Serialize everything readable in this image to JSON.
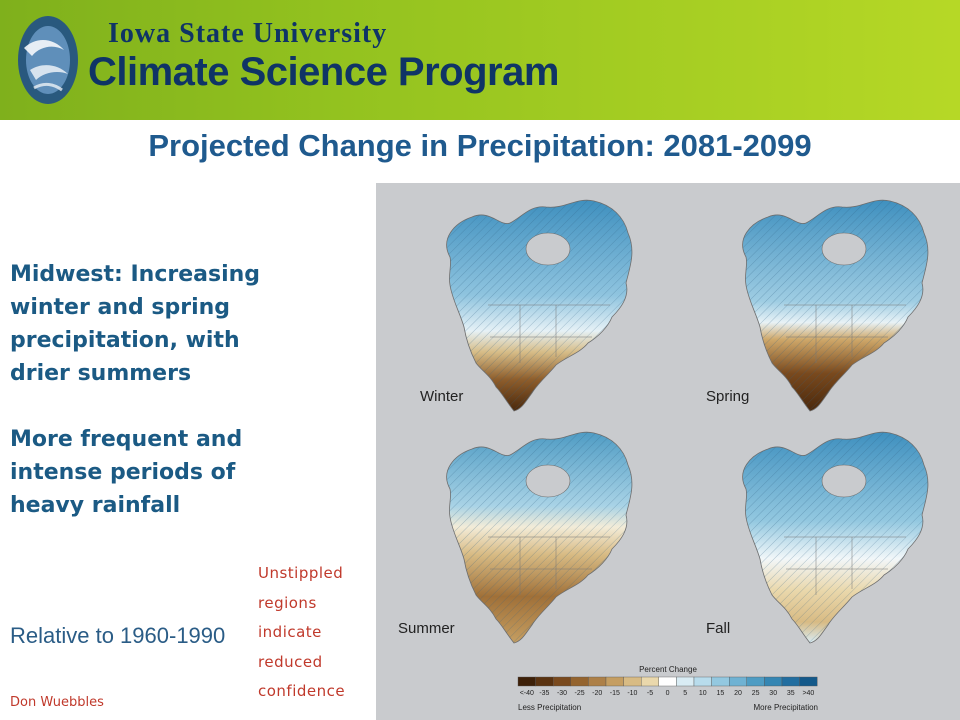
{
  "header": {
    "university": "Iowa State University",
    "program": "Climate Science Program",
    "logo_icon": "wind-swirl-logo-icon"
  },
  "slide": {
    "title": "Projected Change in Precipitation: 2081-2099",
    "midwest_point": "Midwest: Increasing winter and spring precipitation, with drier summers",
    "rainfall_point": "More frequent and intense periods of heavy rainfall",
    "relative": "Relative to 1960-1990",
    "author": "Don Wuebbles",
    "note": "Unstippled regions indicate reduced confidence"
  },
  "figure": {
    "maps": [
      {
        "season": "Winter"
      },
      {
        "season": "Spring"
      },
      {
        "season": "Summer"
      },
      {
        "season": "Fall"
      }
    ],
    "legend": {
      "title": "Percent Change",
      "ticks": [
        "<-40",
        "-35",
        "-30",
        "-25",
        "-20",
        "-15",
        "-10",
        "-5",
        "0",
        "5",
        "10",
        "15",
        "20",
        "25",
        "30",
        "35",
        ">40"
      ],
      "left_label": "Less Precipitation",
      "right_label": "More Precipitation",
      "colors": [
        "#3d2008",
        "#5a3311",
        "#7a4a1e",
        "#94642f",
        "#ad8048",
        "#c59e62",
        "#d8bb84",
        "#ead8ac",
        "#ffffff",
        "#d9ecf4",
        "#b8dcec",
        "#93c8e0",
        "#6fb2d3",
        "#4e9cc3",
        "#3586b3",
        "#226ea0",
        "#14598a"
      ]
    }
  },
  "colors": {
    "title_blue": "#1f5a8e",
    "body_blue": "#1b5a84",
    "note_red": "#c0392b",
    "header_green": "#93c21f",
    "header_navy": "#0f3466"
  }
}
